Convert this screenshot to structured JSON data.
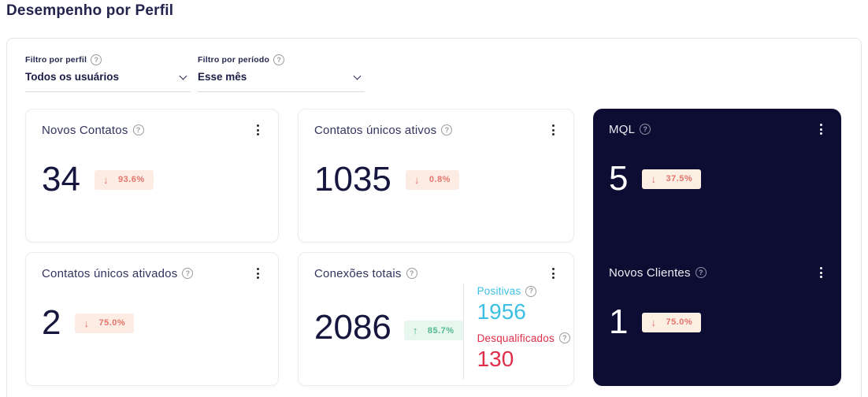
{
  "page": {
    "title": "Desempenho por Perfil"
  },
  "filters": {
    "profile": {
      "label": "Filtro por perfil",
      "value": "Todos os usuários"
    },
    "period": {
      "label": "Filtro por período",
      "value": "Esse mês"
    }
  },
  "cards": {
    "novos_contatos": {
      "label": "Novos Contatos",
      "value": "34",
      "delta": "93.6%",
      "direction": "down"
    },
    "contatos_unicos_ativos": {
      "label": "Contatos únicos ativos",
      "value": "1035",
      "delta": "0.8%",
      "direction": "down"
    },
    "contatos_unicos_ativados": {
      "label": "Contatos únicos ativados",
      "value": "2",
      "delta": "75.0%",
      "direction": "down"
    },
    "conexoes_totais": {
      "label": "Conexões totais",
      "value": "2086",
      "delta": "85.7%",
      "direction": "up",
      "positivas": {
        "label": "Positivas",
        "value": "1956"
      },
      "desqualificados": {
        "label": "Desqualificados",
        "value": "130"
      }
    },
    "mql": {
      "label": "MQL",
      "value": "5",
      "delta": "37.5%",
      "direction": "down"
    },
    "novos_clientes": {
      "label": "Novos Clientes",
      "value": "1",
      "delta": "75.0%",
      "direction": "down"
    }
  },
  "icons": {
    "help": "?",
    "arrow_down": "↓",
    "arrow_up": "↑"
  },
  "colors": {
    "title_navy": "#23234d",
    "number_navy": "#16163f",
    "dark_card_bg": "#0d0d33",
    "negative_text": "#e4746a",
    "negative_bg": "#fcece4",
    "positive_text": "#4fba8c",
    "positive_bg": "#e7f6ef",
    "info_cyan": "#3cc0e3",
    "danger_red": "#e12d49"
  }
}
